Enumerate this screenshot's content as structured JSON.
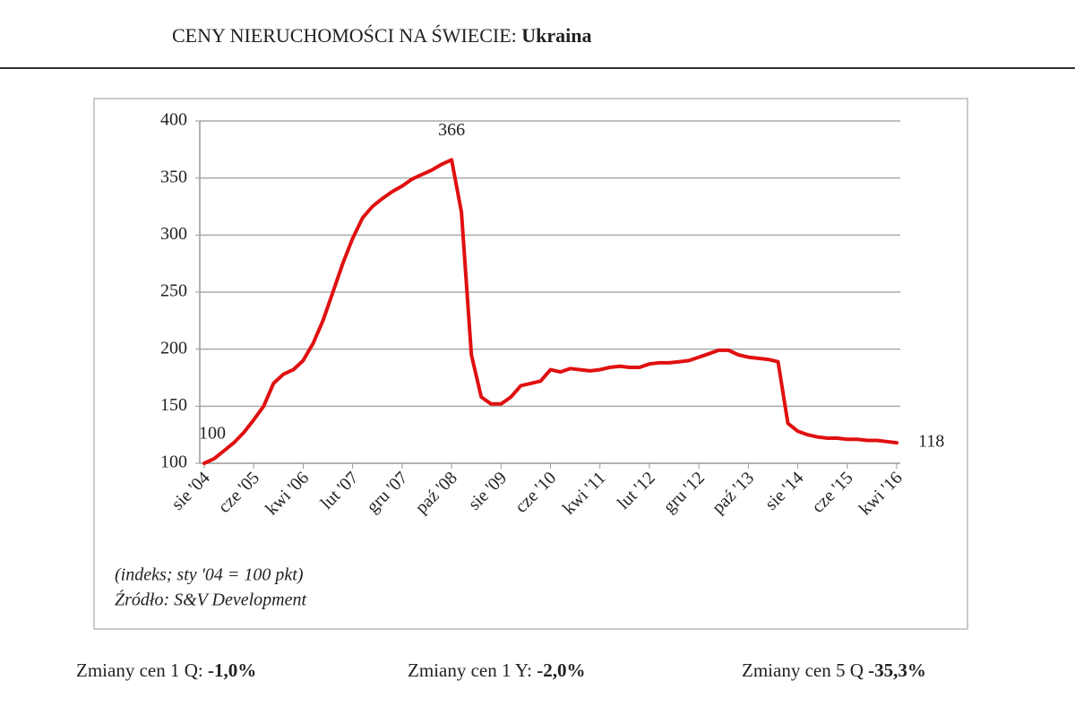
{
  "header": {
    "title": "CENY NIERUCHOMOŚCI NA ŚWIECIE: ",
    "country": "Ukraina"
  },
  "chart_data": {
    "type": "line",
    "categories": [
      "sie '04",
      null,
      null,
      null,
      null,
      "cze '05",
      null,
      null,
      null,
      null,
      "kwi '06",
      null,
      null,
      null,
      null,
      "lut '07",
      null,
      null,
      null,
      null,
      "gru '07",
      null,
      null,
      null,
      null,
      "paź '08",
      null,
      null,
      null,
      null,
      "sie '09",
      null,
      null,
      null,
      null,
      "cze '10",
      null,
      null,
      null,
      null,
      "kwi '11",
      null,
      null,
      null,
      null,
      "lut '12",
      null,
      null,
      null,
      null,
      "gru '12",
      null,
      null,
      null,
      null,
      "paź '13",
      null,
      null,
      null,
      null,
      "sie '14",
      null,
      null,
      null,
      null,
      "cze '15",
      null,
      null,
      null,
      null,
      "kwi '16"
    ],
    "values": [
      100,
      104,
      111,
      118,
      127,
      138,
      150,
      170,
      178,
      182,
      190,
      205,
      225,
      250,
      275,
      297,
      315,
      325,
      332,
      338,
      343,
      349,
      353,
      357,
      362,
      366,
      320,
      195,
      158,
      152,
      152,
      158,
      168,
      170,
      172,
      182,
      180,
      183,
      182,
      181,
      182,
      184,
      185,
      184,
      184,
      187,
      188,
      188,
      189,
      190,
      193,
      196,
      199,
      199,
      195,
      193,
      192,
      191,
      189,
      135,
      128,
      125,
      123,
      122,
      122,
      121,
      121,
      120,
      120,
      119,
      118
    ],
    "labeled_points": [
      0,
      25,
      70
    ],
    "color": "#e01010",
    "ylim": [
      100,
      400
    ],
    "yticks": [
      100,
      150,
      200,
      250,
      300,
      350,
      400
    ],
    "grid": true,
    "notes": [
      "(indeks; sty '04 = 100 pkt)",
      "Źródło: S&V Development"
    ]
  },
  "footer": [
    {
      "label": "Zmiany cen 1 Q: ",
      "value": "-1,0%"
    },
    {
      "label": "Zmiany cen 1 Y: ",
      "value": "-2,0%"
    },
    {
      "label": "Zmiany cen 5 Q ",
      "value": "-35,3%"
    }
  ]
}
